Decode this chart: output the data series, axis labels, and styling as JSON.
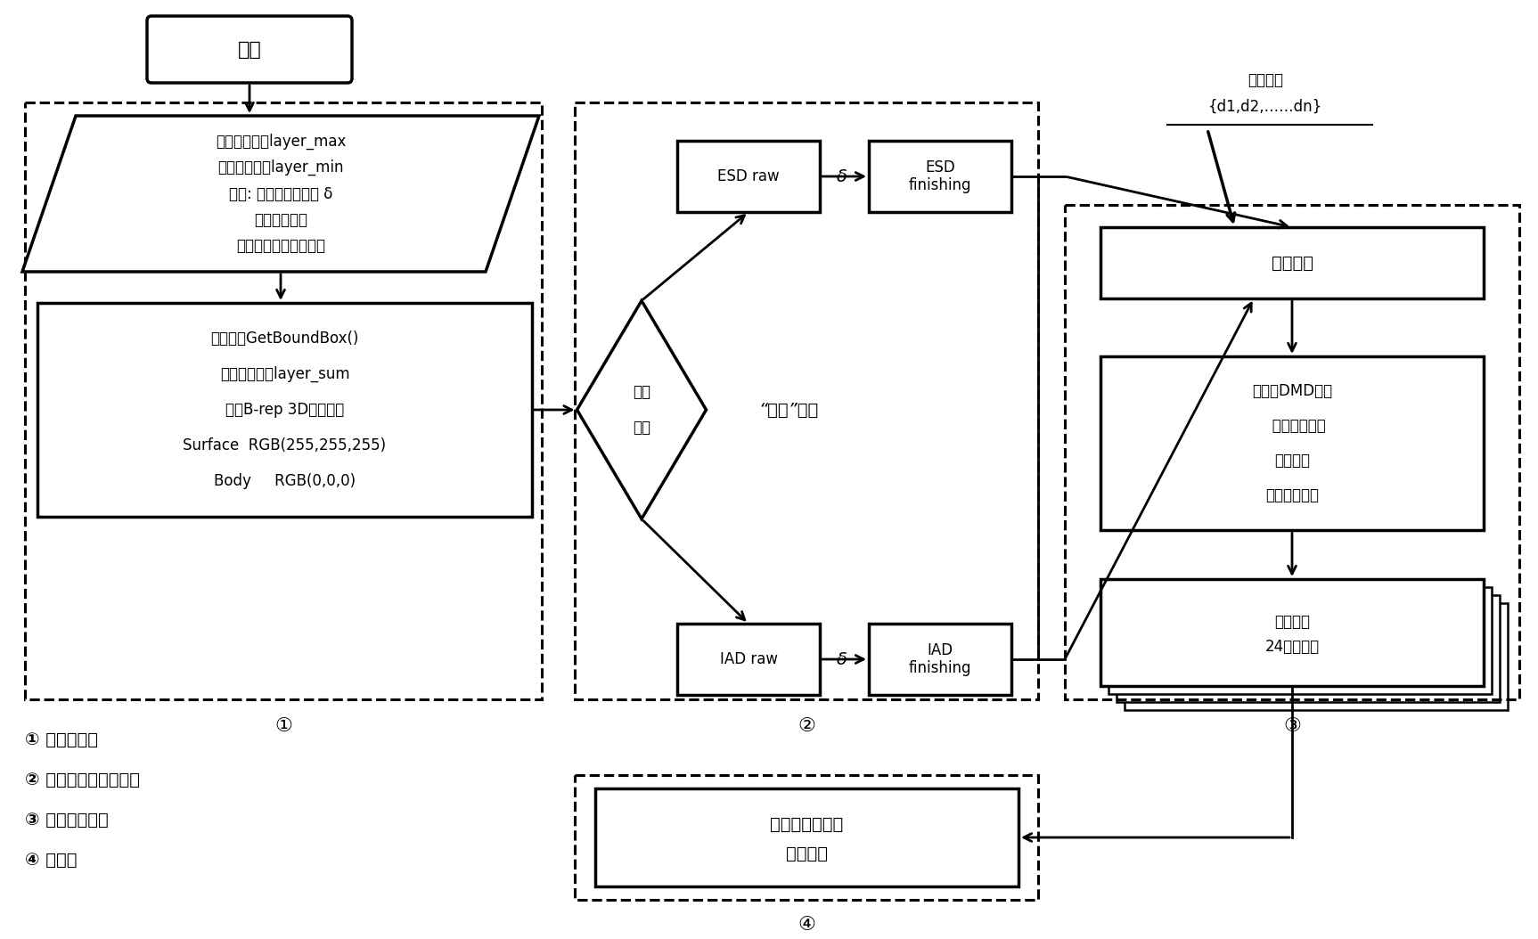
{
  "bg_color": "#ffffff",
  "figsize": [
    17.26,
    10.54
  ],
  "dpi": 100,
  "start_text": "开始",
  "parallelogram_lines": [
    "最大允许层厄layer_max",
    "最下允许层厄layer_min",
    "输入: 自适应厘度误差 δ",
    "数据保存路径",
    "位图切片数据保存路径"
  ],
  "rect1_lines": [
    "包容盒：GetBoundBox()",
    "计算切片数：layer_sum",
    "设置B-rep 3D模型颜色",
    "Surface  RGB(255,255,255)",
    "Body     RGB(0,0,0)"
  ],
  "diamond_lines": [
    "用户",
    "决定"
  ],
  "esd_raw": "ESD raw",
  "esd_fin": "ESD\nfinishing",
  "iad_raw": "IAD raw",
  "iad_fin": "IAD\nfinishing",
  "two_step": "“两步”机制",
  "layer_seq_lines": [
    "层厄序列",
    "{d1,d2,……dn}"
  ],
  "direct_slice": "直接切片",
  "match_lines": [
    "匹配：DMD型号",
    "   投影透镜倍率",
    "干涉检查",
    "生产位图数据"
  ],
  "save_lines": [
    "保存数据",
    "24真彩位图"
  ],
  "dither_lines": [
    "抖动成单色位图",
    "反色处理"
  ],
  "legend": [
    "① 预处理阶段",
    "② 厘度自适应处理阶段",
    "③ 直接切片处理",
    "④ 后处理"
  ]
}
